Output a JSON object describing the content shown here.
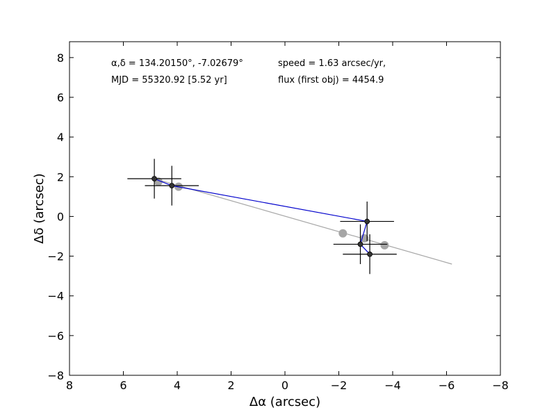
{
  "chart_data": {
    "type": "scatter",
    "xlabel": "Δα (arcsec)",
    "ylabel": "Δδ (arcsec)",
    "xlim": [
      8,
      -8
    ],
    "ylim": [
      -8,
      8.8
    ],
    "xticks": [
      8,
      6,
      4,
      2,
      0,
      -2,
      -4,
      -6,
      -8
    ],
    "xtick_labels": [
      "8",
      "6",
      "4",
      "2",
      "0",
      "−2",
      "−4",
      "−6",
      "−8"
    ],
    "yticks": [
      -8,
      -6,
      -4,
      -2,
      0,
      2,
      4,
      6,
      8
    ],
    "ytick_labels": [
      "−8",
      "−6",
      "−4",
      "−2",
      "0",
      "2",
      "4",
      "6",
      "8"
    ],
    "grid": false,
    "annotations": {
      "coords": "α,δ = 134.20150°, -7.02679°",
      "mjd": "MJD = 55320.92 [5.52 yr]",
      "speed": "speed = 1.63 arcsec/yr,",
      "flux": "flux (first obj) = 4454.9"
    },
    "colors": {
      "observed": "#000000",
      "observed_path": "#0000cc",
      "model": "#a6a6a6"
    },
    "series": [
      {
        "role": "observed",
        "x": [
          4.85,
          4.2,
          -3.05,
          -2.8,
          -3.15
        ],
        "y": [
          1.9,
          1.55,
          -0.25,
          -1.4,
          -1.9
        ],
        "xerr": [
          1.0,
          1.0,
          1.0,
          1.0,
          1.0
        ],
        "yerr": [
          1.0,
          1.0,
          1.0,
          1.0,
          1.0
        ]
      },
      {
        "role": "model-fit-line",
        "x": [
          4.85,
          -6.2
        ],
        "y": [
          1.9,
          -2.4
        ]
      },
      {
        "role": "model-positions",
        "x": [
          4.7,
          3.95,
          -2.15,
          -2.95,
          -3.7
        ],
        "y": [
          1.75,
          1.5,
          -0.85,
          -1.1,
          -1.45
        ]
      }
    ]
  }
}
